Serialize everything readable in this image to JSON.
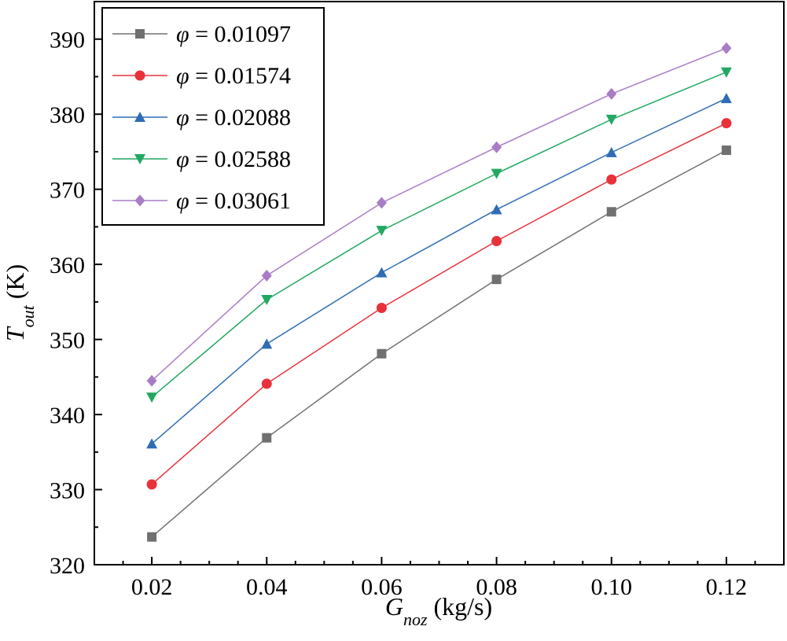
{
  "chart_data": {
    "type": "line",
    "title": "",
    "x": [
      0.02,
      0.04,
      0.06,
      0.08,
      0.1,
      0.12
    ],
    "x_tick_labels": [
      "0.02",
      "0.04",
      "0.06",
      "0.08",
      "0.10",
      "0.12"
    ],
    "xlim": [
      0.01,
      0.13
    ],
    "ylim": [
      320,
      395
    ],
    "y_ticks": [
      320,
      330,
      340,
      350,
      360,
      370,
      380,
      390
    ],
    "y_tick_labels": [
      "320",
      "330",
      "340",
      "350",
      "360",
      "370",
      "380",
      "390"
    ],
    "xlabel": {
      "main": "G",
      "sub": "noz",
      "rest": " (kg/s)"
    },
    "ylabel": {
      "main": "T",
      "sub": "out",
      "rest": " (K)"
    },
    "legend_position": "top-left",
    "legend_symbol": "φ",
    "legend_equals": " = ",
    "series": [
      {
        "name": "0.01097",
        "color": "#707070",
        "marker": "square",
        "values": [
          323.7,
          336.9,
          348.1,
          358.0,
          367.0,
          375.2
        ]
      },
      {
        "name": "0.01574",
        "color": "#e8323a",
        "marker": "circle",
        "values": [
          330.7,
          344.1,
          354.2,
          363.1,
          371.3,
          378.8
        ]
      },
      {
        "name": "0.02088",
        "color": "#2f6db5",
        "marker": "triangle-up",
        "values": [
          336.1,
          349.4,
          358.9,
          367.3,
          374.9,
          382.1
        ]
      },
      {
        "name": "0.02588",
        "color": "#22a861",
        "marker": "triangle-down",
        "values": [
          342.3,
          355.3,
          364.5,
          372.1,
          379.3,
          385.6
        ]
      },
      {
        "name": "0.03061",
        "color": "#a97cc6",
        "marker": "diamond",
        "values": [
          344.5,
          358.5,
          368.2,
          375.6,
          382.7,
          388.8
        ]
      }
    ]
  }
}
